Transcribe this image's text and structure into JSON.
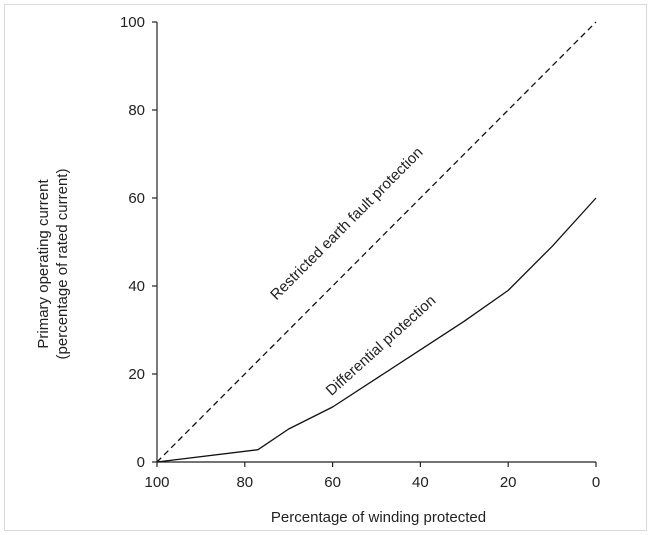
{
  "chart_data": {
    "type": "line",
    "title": "",
    "xlabel": "Percentage of winding protected",
    "ylabel_lines": [
      "Primary operating current",
      "(percentage of rated current)"
    ],
    "xlim": [
      100,
      0
    ],
    "ylim": [
      0,
      100
    ],
    "x_ticks": [
      100,
      80,
      60,
      40,
      20,
      0
    ],
    "y_ticks": [
      0,
      20,
      40,
      60,
      80,
      100
    ],
    "grid": false,
    "series": [
      {
        "name": "Restricted earth fault protection",
        "style": "dashed",
        "x": [
          100,
          0
        ],
        "y": [
          0,
          100
        ]
      },
      {
        "name": "Differential protection",
        "style": "solid",
        "x": [
          100,
          77,
          70,
          60,
          50,
          40,
          30,
          20,
          10,
          0
        ],
        "y": [
          0,
          2.8,
          7.5,
          12.5,
          19,
          25.5,
          32,
          39,
          49,
          60
        ]
      }
    ],
    "colors": {
      "line": "#111111",
      "axis": "#222222",
      "text": "#222222"
    }
  }
}
